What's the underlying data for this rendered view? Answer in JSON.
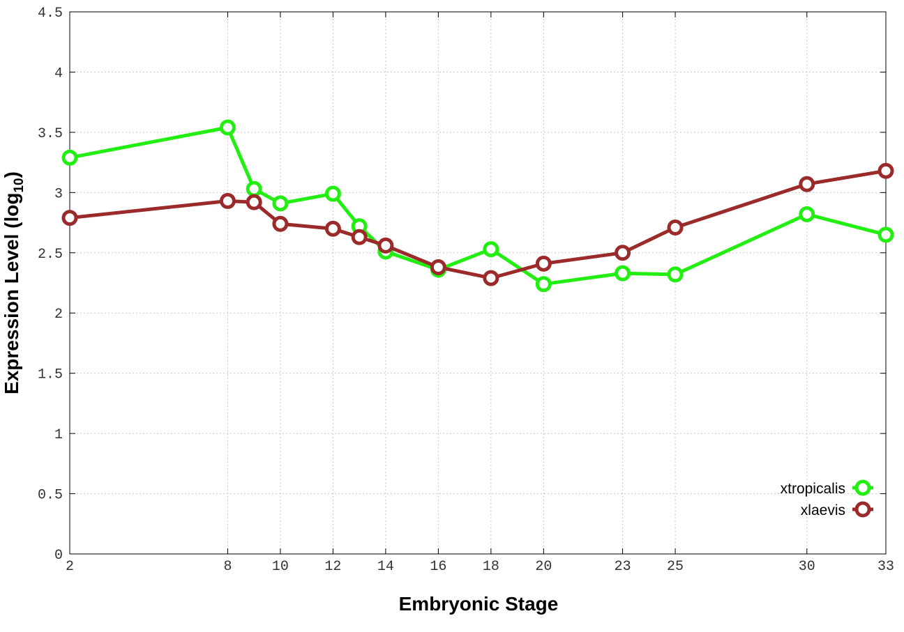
{
  "chart_data": {
    "type": "line",
    "xlabel": "Embryonic Stage",
    "ylabel": {
      "main": "Expression Level (log",
      "sub": "10",
      "close": ")"
    },
    "x_ticks": [
      2,
      8,
      10,
      12,
      14,
      16,
      18,
      20,
      23,
      25,
      30,
      33
    ],
    "y_ticks": [
      "0",
      "0.5",
      "1",
      "1.5",
      "2",
      "2.5",
      "3",
      "3.5",
      "4",
      "4.5"
    ],
    "xlim": [
      2,
      33
    ],
    "ylim": [
      0,
      4.5
    ],
    "grid": true,
    "legend_position": "bottom-right",
    "series": [
      {
        "name": "xtropicalis",
        "color": "#22ee11",
        "x": [
          2,
          8,
          9,
          10,
          12,
          13,
          14,
          16,
          18,
          20,
          23,
          25,
          30,
          33
        ],
        "y": [
          3.29,
          3.54,
          3.03,
          2.91,
          2.99,
          2.72,
          2.51,
          2.36,
          2.53,
          2.24,
          2.33,
          2.32,
          2.82,
          2.65
        ]
      },
      {
        "name": "xlaevis",
        "color": "#9b2b2b",
        "x": [
          2,
          8,
          9,
          10,
          12,
          13,
          14,
          16,
          18,
          20,
          23,
          25,
          30,
          33
        ],
        "y": [
          2.79,
          2.93,
          2.92,
          2.74,
          2.7,
          2.63,
          2.56,
          2.38,
          2.29,
          2.41,
          2.5,
          2.71,
          3.07,
          3.18
        ]
      }
    ]
  }
}
